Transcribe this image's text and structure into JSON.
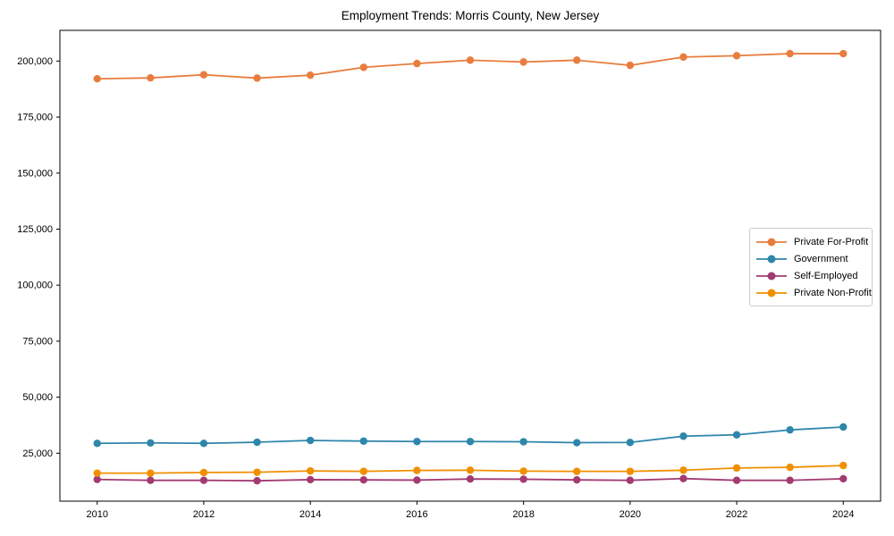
{
  "title": "Employment Trends: Morris County, New Jersey",
  "chart_data": {
    "type": "line",
    "x": [
      2010,
      2011,
      2012,
      2013,
      2014,
      2015,
      2016,
      2017,
      2018,
      2019,
      2020,
      2021,
      2022,
      2023,
      2024
    ],
    "series": [
      {
        "name": "Private For-Profit",
        "color": "#E87D3E",
        "values": [
          192100,
          192500,
          193900,
          192400,
          193700,
          197200,
          198900,
          200400,
          199600,
          200400,
          198100,
          201800,
          202400,
          203300,
          203300
        ]
      },
      {
        "name": "Government",
        "color": "#2E86AB",
        "values": [
          29400,
          29600,
          29400,
          29900,
          30700,
          30400,
          30200,
          30200,
          30100,
          29700,
          29800,
          32600,
          33200,
          35400,
          36700
        ]
      },
      {
        "name": "Self-Employed",
        "color": "#A23B72",
        "values": [
          13300,
          12900,
          12900,
          12700,
          13200,
          13100,
          13000,
          13500,
          13400,
          13100,
          12900,
          13700,
          12900,
          12900,
          13600
        ]
      },
      {
        "name": "Private Non-Profit",
        "color": "#F18F01",
        "values": [
          16100,
          16100,
          16400,
          16500,
          17100,
          16900,
          17300,
          17400,
          17000,
          16900,
          16900,
          17400,
          18400,
          18700,
          19500
        ]
      }
    ],
    "title": "Employment Trends: Morris County, New Jersey",
    "xlabel": "",
    "ylabel": "",
    "x_ticks": [
      2010,
      2012,
      2014,
      2016,
      2018,
      2020,
      2022,
      2024
    ],
    "x_tick_labels": [
      "2010",
      "2012",
      "2014",
      "2016",
      "2018",
      "2020",
      "2022",
      "2024"
    ],
    "y_ticks": [
      25000,
      50000,
      75000,
      100000,
      125000,
      150000,
      175000,
      200000
    ],
    "y_tick_labels": [
      "25,000",
      "50,000",
      "75,000",
      "100,000",
      "125,000",
      "150,000",
      "175,000",
      "200,000"
    ],
    "xlim": [
      2009.3,
      2024.7
    ],
    "ylim": [
      3600,
      213700
    ],
    "grid": false,
    "legend_position": "center-right",
    "frame_color": "#000000",
    "background_color": "#ffffff"
  }
}
